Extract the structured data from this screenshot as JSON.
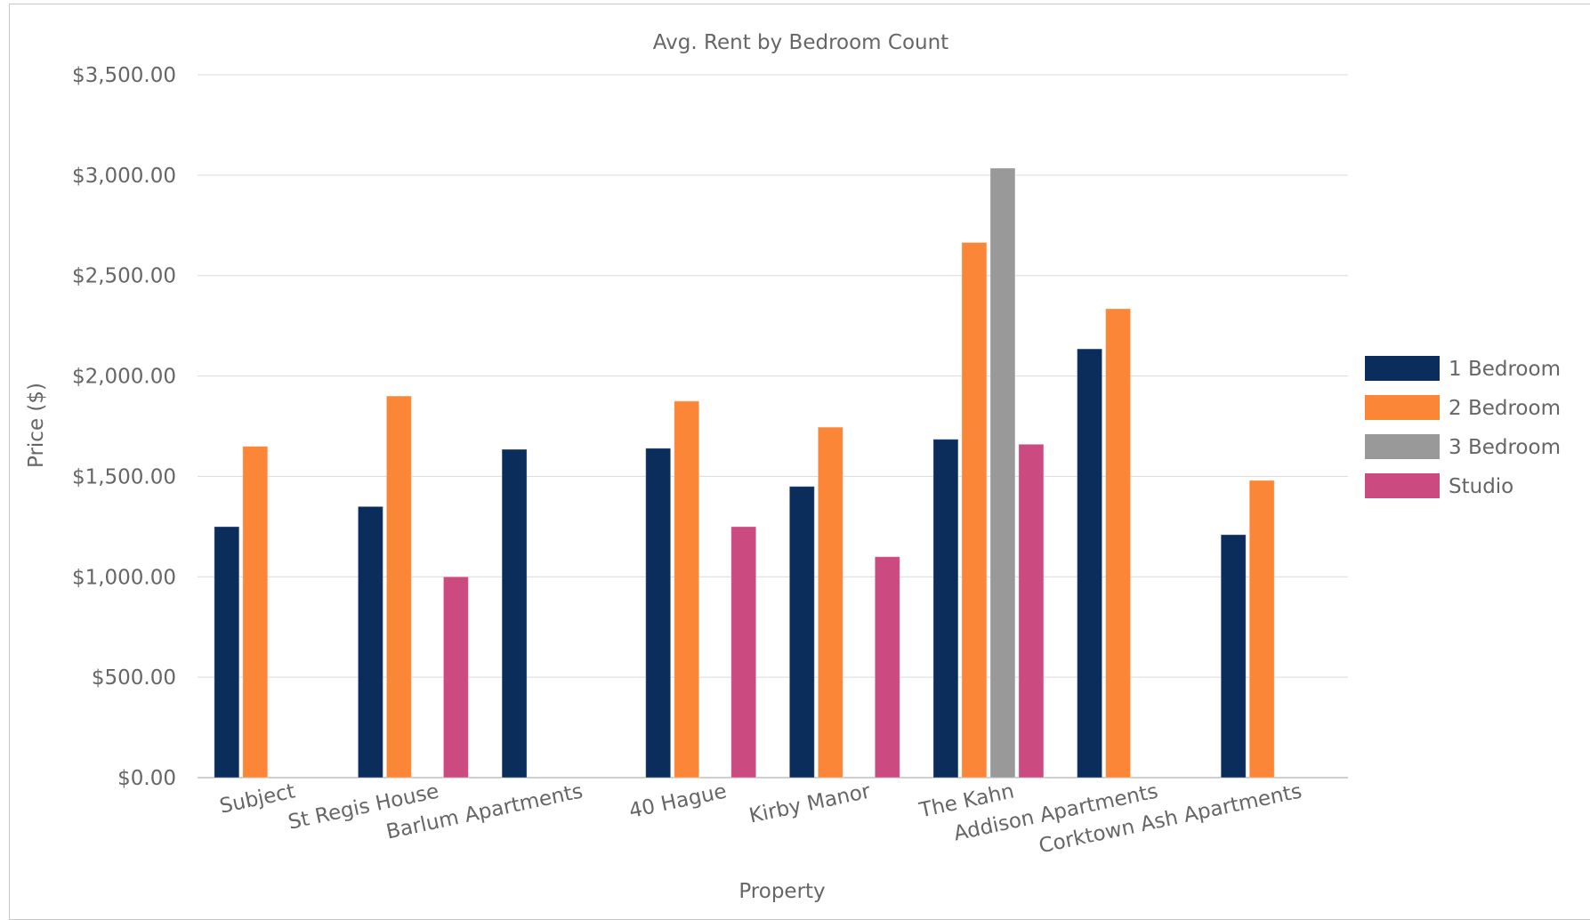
{
  "chart_data": {
    "type": "bar",
    "title": "Avg. Rent by Bedroom Count",
    "xlabel": "Property",
    "ylabel": "Price ($)",
    "ylim": [
      0,
      3500
    ],
    "yticks": [
      "$0.00",
      "$500.00",
      "$1,000.00",
      "$1,500.00",
      "$2,000.00",
      "$2,500.00",
      "$3,000.00",
      "$3,500.00"
    ],
    "grid": true,
    "legend_position": "right",
    "categories": [
      "Subject",
      "St Regis House",
      "Barlum Apartments",
      "40 Hague",
      "Kirby Manor",
      "The Kahn",
      "Addison Apartments",
      "Corktown Ash Apartments"
    ],
    "series": [
      {
        "name": "1 Bedroom",
        "color": "#0b2d5b",
        "values": [
          1250,
          1350,
          1635,
          1640,
          1450,
          1685,
          2135,
          1210
        ]
      },
      {
        "name": "2 Bedroom",
        "color": "#fb8638",
        "values": [
          1650,
          1900,
          null,
          1875,
          1745,
          2665,
          2335,
          1480
        ]
      },
      {
        "name": "3 Bedroom",
        "color": "#999999",
        "values": [
          null,
          null,
          null,
          null,
          null,
          3035,
          null,
          null
        ]
      },
      {
        "name": "Studio",
        "color": "#cb4a80",
        "values": [
          null,
          1000,
          null,
          1250,
          1100,
          1660,
          null,
          null
        ]
      }
    ]
  }
}
